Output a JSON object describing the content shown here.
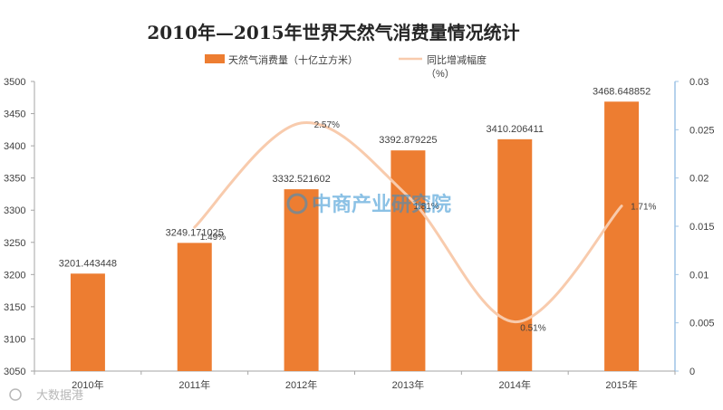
{
  "chart_data": {
    "type": "bar+line",
    "title": "2010年—2015年世界天然气消费量情况统计",
    "categories": [
      "2010年",
      "2011年",
      "2012年",
      "2013年",
      "2014年",
      "2015年"
    ],
    "series": [
      {
        "name": "天然气消费量（十亿立方米）",
        "type": "bar",
        "axis": "left",
        "color": "#ed7d31",
        "values": [
          3201.443448,
          3249.171025,
          3332.521602,
          3392.879225,
          3410.206411,
          3468.648852
        ],
        "labels": [
          "3201.443448",
          "3249.171025",
          "3332.521602",
          "3392.879225",
          "3410.206411",
          "3468.648852"
        ]
      },
      {
        "name": "同比增减幅度（%）",
        "type": "line",
        "axis": "right",
        "color": "#f8cbad",
        "values": [
          null,
          0.0149,
          0.0257,
          0.0181,
          0.0051,
          0.0171
        ],
        "labels": [
          "",
          "1.49%",
          "2.57%",
          "1.81%",
          "0.51%",
          "1.71%"
        ]
      }
    ],
    "y_left": {
      "min": 3050,
      "max": 3500,
      "step": 50,
      "ticks": [
        "3050",
        "3100",
        "3150",
        "3200",
        "3250",
        "3300",
        "3350",
        "3400",
        "3450",
        "3500"
      ]
    },
    "y_right": {
      "min": 0,
      "max": 0.03,
      "step": 0.005,
      "ticks": [
        "0",
        "0.005",
        "0.01",
        "0.015",
        "0.02",
        "0.025",
        "0.03"
      ]
    },
    "legend": {
      "position": "top-right",
      "items": [
        {
          "label": "天然气消费量（十亿立方米）",
          "color": "#ed7d31",
          "kind": "box"
        },
        {
          "label_line1": "同比增减幅度",
          "label_line2": "（%）",
          "color": "#f8cbad",
          "kind": "line"
        }
      ]
    },
    "axis_colors": {
      "left": "#a6a6a6",
      "right": "#9dc3e6"
    },
    "grid": false
  },
  "watermark": {
    "center": "中商产业研究院",
    "corner": "大数据港"
  }
}
